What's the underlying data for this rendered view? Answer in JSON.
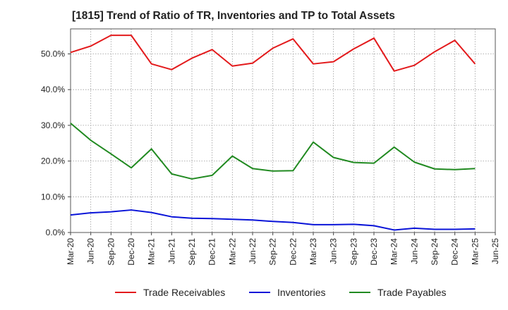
{
  "chart_data": {
    "type": "line",
    "title": "[1815]  Trend of Ratio of TR, Inventories and TP to Total Assets",
    "xlabel": "",
    "ylabel": "",
    "x_tick_labels": [
      "Mar-20",
      "Jun-20",
      "Sep-20",
      "Dec-20",
      "Mar-21",
      "Jun-21",
      "Sep-21",
      "Dec-21",
      "Mar-22",
      "Jun-22",
      "Sep-22",
      "Dec-22",
      "Mar-23",
      "Jun-23",
      "Sep-23",
      "Dec-23",
      "Mar-24",
      "Jun-24",
      "Sep-24",
      "Dec-24",
      "Mar-25",
      "Jun-25"
    ],
    "y_tick_labels": [
      "0.0%",
      "10.0%",
      "20.0%",
      "30.0%",
      "40.0%",
      "50.0%"
    ],
    "y_ticks": [
      0,
      10,
      20,
      30,
      40,
      50
    ],
    "ylim": [
      0,
      57
    ],
    "grid": true,
    "legend_position": "bottom",
    "categories": [
      "Mar-20",
      "Jun-20",
      "Sep-20",
      "Dec-20",
      "Mar-21",
      "Jun-21",
      "Sep-21",
      "Dec-21",
      "Mar-22",
      "Jun-22",
      "Sep-22",
      "Dec-22",
      "Mar-23",
      "Jun-23",
      "Sep-23",
      "Dec-23",
      "Mar-24",
      "Jun-24",
      "Sep-24",
      "Dec-24",
      "Mar-25"
    ],
    "series": [
      {
        "name": "Trade Receivables",
        "color": "#e31a1c",
        "values": [
          50.4,
          52.2,
          55.2,
          55.2,
          47.2,
          45.6,
          48.8,
          51.2,
          46.6,
          47.4,
          51.6,
          54.2,
          47.2,
          47.8,
          51.4,
          54.4,
          45.2,
          46.8,
          50.6,
          53.8,
          47.2
        ]
      },
      {
        "name": "Inventories",
        "color": "#0a14d8",
        "values": [
          4.9,
          5.5,
          5.8,
          6.3,
          5.6,
          4.4,
          4.0,
          3.9,
          3.7,
          3.5,
          3.1,
          2.8,
          2.2,
          2.2,
          2.3,
          1.9,
          0.7,
          1.2,
          0.9,
          0.9,
          1.0
        ]
      },
      {
        "name": "Trade Payables",
        "color": "#218a21",
        "values": [
          30.6,
          25.8,
          22.0,
          18.1,
          23.4,
          16.4,
          15.0,
          16.0,
          21.4,
          17.9,
          17.2,
          17.3,
          25.3,
          21.0,
          19.6,
          19.4,
          23.9,
          19.7,
          17.8,
          17.6,
          17.9
        ]
      }
    ]
  }
}
